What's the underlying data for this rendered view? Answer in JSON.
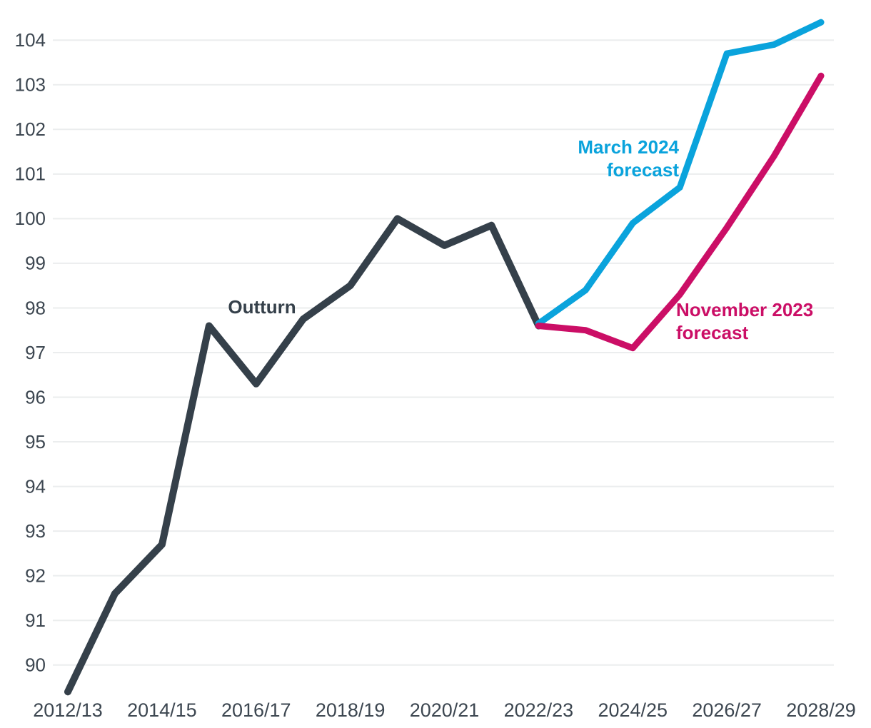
{
  "chart_data": {
    "type": "line",
    "title": "",
    "x_years": [
      "2012/13",
      "2013/14",
      "2014/15",
      "2015/16",
      "2016/17",
      "2017/18",
      "2018/19",
      "2019/20",
      "2020/21",
      "2021/22",
      "2022/23",
      "2023/24",
      "2024/25",
      "2025/26",
      "2026/27",
      "2027/28",
      "2028/29"
    ],
    "x_tick_labels": [
      "2012/13",
      "2014/15",
      "2016/17",
      "2018/19",
      "2020/21",
      "2022/23",
      "2024/25",
      "2026/27",
      "2028/29"
    ],
    "y_ticks": [
      90,
      91,
      92,
      93,
      94,
      95,
      96,
      97,
      98,
      99,
      100,
      101,
      102,
      103,
      104
    ],
    "ylim": [
      89.2,
      104.9
    ],
    "grid": true,
    "legend_position": "inline-annotations",
    "grid_color": "#ebedee",
    "axis_text_color": "#3d4751",
    "series": [
      {
        "name": "Outturn",
        "color": "#35404a",
        "start_index": 0,
        "values": [
          89.4,
          91.6,
          92.7,
          97.6,
          96.3,
          97.75,
          98.5,
          100.0,
          99.4,
          99.85,
          97.6
        ]
      },
      {
        "name": "March 2024 forecast",
        "color": "#0aa3dc",
        "start_index": 10,
        "values": [
          97.65,
          98.4,
          99.9,
          100.7,
          103.7,
          103.9,
          104.4
        ]
      },
      {
        "name": "November 2023 forecast",
        "color": "#cb0e66",
        "start_index": 10,
        "values": [
          97.6,
          97.5,
          97.1,
          98.3,
          99.8,
          101.4,
          103.2
        ]
      }
    ],
    "annotations": [
      {
        "lines": [
          "Outturn"
        ],
        "color": "#35404a"
      },
      {
        "lines": [
          "March 2024",
          "forecast"
        ],
        "color": "#0aa3dc"
      },
      {
        "lines": [
          "November 2023",
          "forecast"
        ],
        "color": "#cb0e66"
      }
    ]
  }
}
